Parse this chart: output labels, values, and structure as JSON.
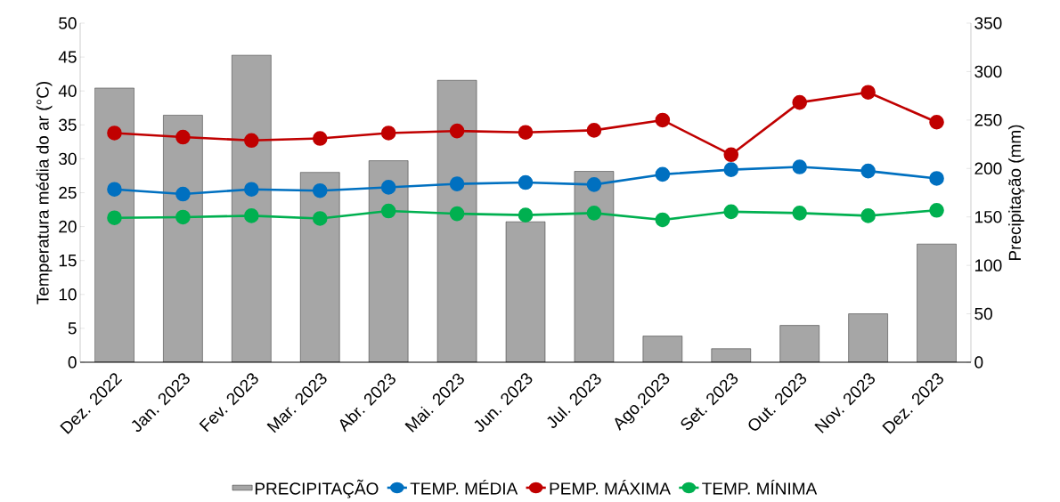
{
  "chart_data": {
    "type": "bar",
    "ylabel": "Temperatura média do ar (°C)",
    "y2label": "Precipitação (mm)",
    "categories": [
      "Dez. 2022",
      "Jan. 2023",
      "Fev. 2023",
      "Mar. 2023",
      "Abr. 2023",
      "Mai. 2023",
      "Jun. 2023",
      "Jul. 2023",
      "Ago.2023",
      "Set. 2023",
      "Out. 2023",
      "Nov. 2023",
      "Dez. 2023"
    ],
    "series": [
      {
        "name": "PRECIPITAÇÃO",
        "axis": "y2",
        "color": "#a6a6a6",
        "values": [
          283,
          255,
          317,
          196,
          208,
          291,
          145,
          197,
          27,
          14,
          38,
          50,
          122
        ]
      },
      {
        "name": "TEMP. MÉDIA",
        "type": "line",
        "color": "#0070c0",
        "values": [
          25.5,
          24.8,
          25.5,
          25.3,
          25.8,
          26.3,
          26.5,
          26.2,
          27.7,
          28.4,
          28.8,
          28.2,
          27.1
        ]
      },
      {
        "name": "PEMP. MÁXIMA",
        "type": "line",
        "color": "#c00000",
        "values": [
          33.8,
          33.2,
          32.7,
          33.0,
          33.8,
          34.1,
          33.9,
          34.2,
          35.7,
          30.6,
          38.3,
          39.8,
          35.4
        ]
      },
      {
        "name": "TEMP. MÍNIMA",
        "type": "line",
        "color": "#00b050",
        "values": [
          21.3,
          21.4,
          21.6,
          21.2,
          22.3,
          21.9,
          21.7,
          22.0,
          21.0,
          22.2,
          22.0,
          21.6,
          22.4
        ]
      }
    ],
    "ylim": [
      0,
      50
    ],
    "yticks": [
      0,
      5,
      10,
      15,
      20,
      25,
      30,
      35,
      40,
      45,
      50
    ],
    "y2lim": [
      0,
      350
    ],
    "y2ticks": [
      0,
      50,
      100,
      150,
      200,
      250,
      300,
      350
    ],
    "legend": "bottom",
    "marker": "circle"
  }
}
